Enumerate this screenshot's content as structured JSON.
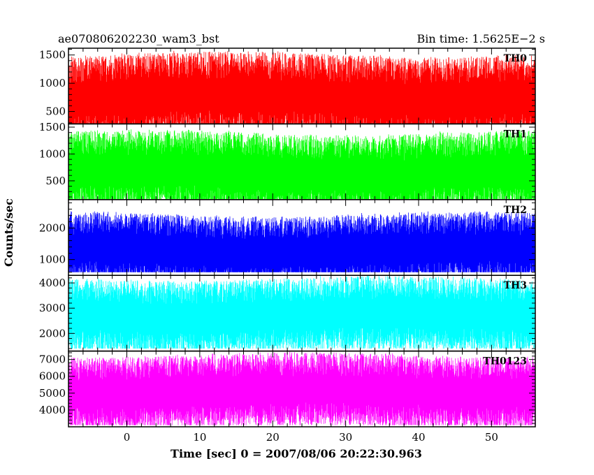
{
  "chart_data": {
    "type": "line",
    "title_left": "ae070806202230_wam3_bst",
    "title_right": "Bin time: 1.5625E−2 s",
    "xlabel": "Time [sec] 0 = 2007/08/06 20:22:30.963",
    "ylabel": "Counts/sec",
    "xlim": [
      -8,
      56
    ],
    "xticks": [
      0,
      10,
      20,
      30,
      40,
      50
    ],
    "x_data_range": [
      -8,
      56
    ],
    "bin_time": 0.015625,
    "grid": false,
    "panels": [
      {
        "name": "TH0",
        "color": "#ff0000",
        "ylim": [
          280,
          1620
        ],
        "yticks": [
          500,
          1000,
          1500
        ],
        "typical_range": [
          120,
          1620
        ],
        "mean": 750
      },
      {
        "name": "TH1",
        "color": "#00ff00",
        "ylim": [
          150,
          1560
        ],
        "yticks": [
          500,
          1000,
          1500
        ],
        "typical_range": [
          80,
          1560
        ],
        "mean": 650
      },
      {
        "name": "TH2",
        "color": "#0000ff",
        "ylim": [
          500,
          2900
        ],
        "yticks": [
          1000,
          2000
        ],
        "typical_range": [
          600,
          2850
        ],
        "mean": 1300
      },
      {
        "name": "TH3",
        "color": "#00ffff",
        "ylim": [
          1300,
          4300
        ],
        "yticks": [
          2000,
          3000,
          4000
        ],
        "typical_range": [
          1400,
          4300
        ],
        "mean": 2700
      },
      {
        "name": "TH0123",
        "color": "#ff00ff",
        "ylim": [
          3000,
          7500
        ],
        "yticks": [
          4000,
          5000,
          6000,
          7000
        ],
        "typical_range": [
          3100,
          7400
        ],
        "mean": 5100
      }
    ]
  }
}
